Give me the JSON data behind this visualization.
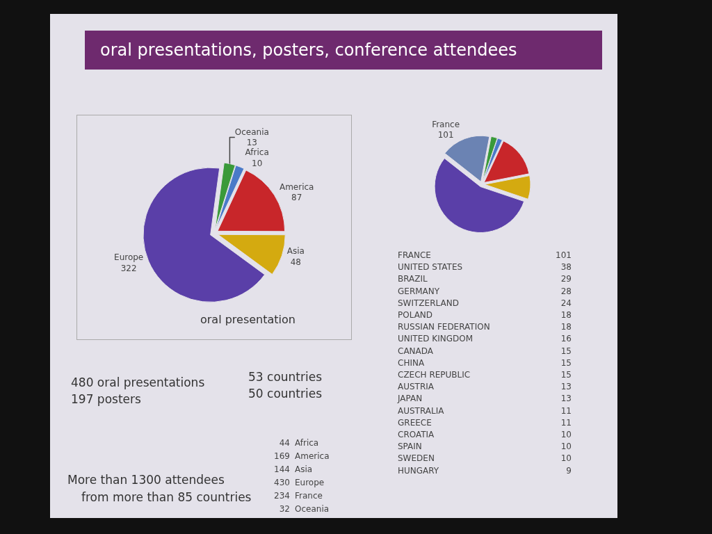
{
  "chart_data": [
    {
      "type": "other",
      "title": "oral presentations, posters, conference attendees"
    },
    {
      "type": "pie",
      "title": "oral presentation",
      "categories": [
        "America",
        "Asia",
        "Europe",
        "Oceania",
        "Africa"
      ],
      "values": [
        87,
        48,
        322,
        13,
        10
      ],
      "colors": [
        "#c8262a",
        "#d4aa10",
        "#5a3fa8",
        "#3a9a3a",
        "#4a7ac8"
      ],
      "data_labels": true
    },
    {
      "type": "pie",
      "categories": [
        null,
        null,
        null,
        "France",
        null,
        null
      ],
      "values": [
        87,
        48,
        322,
        101,
        13,
        10
      ],
      "value_labels": [
        null,
        null,
        null,
        "101",
        null,
        null
      ],
      "colors": [
        "#c8262a",
        "#d4aa10",
        "#5a3fa8",
        "#6b83b3",
        "#3a9a3a",
        "#4a7ac8"
      ]
    },
    {
      "type": "other",
      "categories": [
        "FRANCE",
        "UNITED STATES",
        "BRAZIL",
        "GERMANY",
        "SWITZERLAND",
        "POLAND",
        "RUSSIAN FEDERATION",
        "UNITED KINGDOM",
        "CANADA",
        "CHINA",
        "CZECH REPUBLIC",
        "AUSTRIA",
        "JAPAN",
        "AUSTRALIA",
        "GREECE",
        "CROATIA",
        "SPAIN",
        "SWEDEN",
        "HUNGARY"
      ],
      "values": [
        101,
        38,
        29,
        28,
        24,
        18,
        18,
        16,
        15,
        15,
        15,
        13,
        13,
        11,
        11,
        10,
        10,
        10,
        9
      ],
      "data_labels": true
    },
    {
      "type": "other",
      "annotations": [
        "480 oral presentations",
        "197 posters",
        "53 countries",
        "50 countries",
        "More than 1300 attendees",
        "from more than 85 countries"
      ],
      "categories": [
        "Africa",
        "America",
        "Asia",
        "Europe",
        "France",
        "Oceania"
      ],
      "values": [
        44,
        169,
        144,
        430,
        234,
        32
      ],
      "data_labels": true
    }
  ]
}
